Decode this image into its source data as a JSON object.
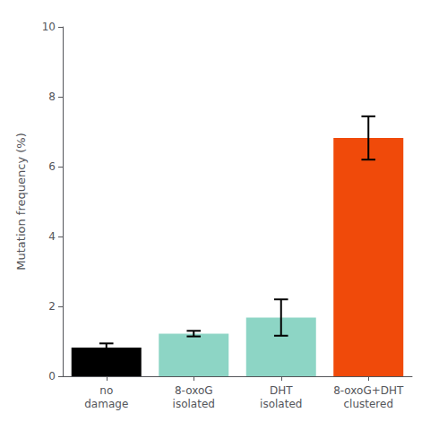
{
  "chart_data": {
    "type": "bar",
    "categories": [
      "no\ndamage",
      "8-oxoG\nisolated",
      "DHT\nisolated",
      "8-oxoG+DHT\nclustered"
    ],
    "values": [
      0.82,
      1.22,
      1.68,
      6.82
    ],
    "errors": [
      0.12,
      0.08,
      0.52,
      0.62
    ],
    "colors": [
      "#000000",
      "#8dd5c5",
      "#8dd5c5",
      "#f04a0a"
    ],
    "ylabel": "Mutation frequency (%)",
    "ylim": [
      0,
      10
    ],
    "yticks": [
      0,
      2,
      4,
      6,
      8,
      10
    ],
    "grid": false
  }
}
